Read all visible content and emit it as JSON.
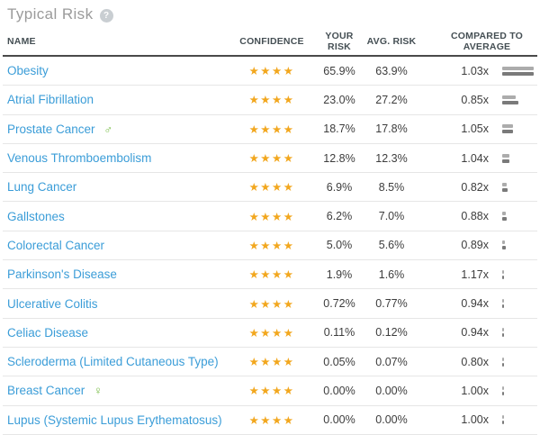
{
  "title": {
    "text": "Typical Risk",
    "help_icon": "?"
  },
  "icons": {
    "male": "♂",
    "female": "♀"
  },
  "colors": {
    "link_blue": "#3b9dd8",
    "star_gold": "#f2a71e",
    "gender_green": "#76bc43",
    "bar_your_gray": "#acacac",
    "bar_avg_gray": "#7a7a7a",
    "header_text": "#454f54",
    "title_gray": "#9b9b9b"
  },
  "table": {
    "headers": {
      "name": "NAME",
      "confidence": "CONFIDENCE",
      "your_risk": "YOUR RISK",
      "avg_risk": "AVG. RISK",
      "compared": "COMPARED TO AVERAGE"
    },
    "star_glyph": "★",
    "rows": [
      {
        "name": "Obesity",
        "gender": null,
        "stars": 4,
        "your_risk": "65.9%",
        "avg_risk": "63.9%",
        "compared": "1.03x",
        "your_pct": 65.9,
        "avg_pct": 63.9
      },
      {
        "name": "Atrial Fibrillation",
        "gender": null,
        "stars": 4,
        "your_risk": "23.0%",
        "avg_risk": "27.2%",
        "compared": "0.85x",
        "your_pct": 23.0,
        "avg_pct": 27.2
      },
      {
        "name": "Prostate Cancer",
        "gender": "male",
        "stars": 4,
        "your_risk": "18.7%",
        "avg_risk": "17.8%",
        "compared": "1.05x",
        "your_pct": 18.7,
        "avg_pct": 17.8
      },
      {
        "name": "Venous Thromboembolism",
        "gender": null,
        "stars": 4,
        "your_risk": "12.8%",
        "avg_risk": "12.3%",
        "compared": "1.04x",
        "your_pct": 12.8,
        "avg_pct": 12.3
      },
      {
        "name": "Lung Cancer",
        "gender": null,
        "stars": 4,
        "your_risk": "6.9%",
        "avg_risk": "8.5%",
        "compared": "0.82x",
        "your_pct": 6.9,
        "avg_pct": 8.5
      },
      {
        "name": "Gallstones",
        "gender": null,
        "stars": 4,
        "your_risk": "6.2%",
        "avg_risk": "7.0%",
        "compared": "0.88x",
        "your_pct": 6.2,
        "avg_pct": 7.0
      },
      {
        "name": "Colorectal Cancer",
        "gender": null,
        "stars": 4,
        "your_risk": "5.0%",
        "avg_risk": "5.6%",
        "compared": "0.89x",
        "your_pct": 5.0,
        "avg_pct": 5.6
      },
      {
        "name": "Parkinson's Disease",
        "gender": null,
        "stars": 4,
        "your_risk": "1.9%",
        "avg_risk": "1.6%",
        "compared": "1.17x",
        "your_pct": 1.9,
        "avg_pct": 1.6
      },
      {
        "name": "Ulcerative Colitis",
        "gender": null,
        "stars": 4,
        "your_risk": "0.72%",
        "avg_risk": "0.77%",
        "compared": "0.94x",
        "your_pct": 0.72,
        "avg_pct": 0.77
      },
      {
        "name": "Celiac Disease",
        "gender": null,
        "stars": 4,
        "your_risk": "0.11%",
        "avg_risk": "0.12%",
        "compared": "0.94x",
        "your_pct": 0.11,
        "avg_pct": 0.12
      },
      {
        "name": "Scleroderma (Limited Cutaneous Type)",
        "gender": null,
        "stars": 4,
        "your_risk": "0.05%",
        "avg_risk": "0.07%",
        "compared": "0.80x",
        "your_pct": 0.05,
        "avg_pct": 0.07
      },
      {
        "name": "Breast Cancer",
        "gender": "female",
        "stars": 4,
        "your_risk": "0.00%",
        "avg_risk": "0.00%",
        "compared": "1.00x",
        "your_pct": 0.0,
        "avg_pct": 0.0
      },
      {
        "name": "Lupus (Systemic Lupus Erythematosus)",
        "gender": "female",
        "stars": 4,
        "your_risk": "0.00%",
        "avg_risk": "0.00%",
        "compared": "1.00x",
        "your_pct": 0.0,
        "avg_pct": 0.0
      }
    ]
  }
}
